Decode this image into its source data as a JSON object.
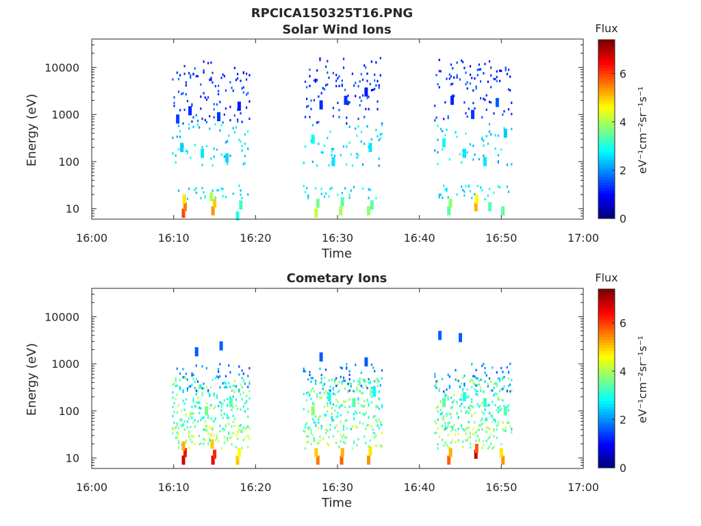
{
  "figure_title": "RPCICA150325T16.PNG",
  "chart_data": [
    {
      "type": "heatmap",
      "title": "Solar Wind Ions",
      "xlabel": "Time",
      "ylabel": "Energy (eV)",
      "x_ticks": [
        "16:00",
        "16:10",
        "16:20",
        "16:30",
        "16:40",
        "16:50",
        "17:00"
      ],
      "y_ticks": [
        "10",
        "100",
        "1000",
        "10000"
      ],
      "y_scale": "log",
      "ylim": [
        6,
        40000
      ],
      "xlim_minutes": [
        0,
        60
      ],
      "colorbar": {
        "label_top": "Flux",
        "label_side": "eV⁻¹cm⁻²sr⁻¹s⁻¹",
        "ticks": [
          "0",
          "2",
          "4",
          "6"
        ],
        "range": [
          0,
          7.4
        ],
        "colormap": "jet"
      },
      "bursts": [
        {
          "start_min": 9.8,
          "end_min": 19.3,
          "note": "data interval"
        },
        {
          "start_min": 25.8,
          "end_min": 35.5,
          "note": "data interval"
        },
        {
          "start_min": 41.8,
          "end_min": 51.3,
          "note": "data interval"
        }
      ],
      "cells": [
        [
          11.2,
          8,
          6.0
        ],
        [
          11.4,
          11,
          5.6
        ],
        [
          11.3,
          16,
          4.8
        ],
        [
          14.8,
          9,
          5.4
        ],
        [
          15.0,
          13,
          5.0
        ],
        [
          14.6,
          18,
          4.0
        ],
        [
          17.8,
          7,
          3.0
        ],
        [
          18.2,
          12,
          3.2
        ],
        [
          27.4,
          8,
          4.2
        ],
        [
          27.6,
          13,
          3.6
        ],
        [
          30.4,
          9,
          4.0
        ],
        [
          30.6,
          14,
          3.4
        ],
        [
          33.8,
          9,
          3.8
        ],
        [
          34.2,
          12,
          3.4
        ],
        [
          43.6,
          9,
          3.4
        ],
        [
          43.8,
          13,
          3.8
        ],
        [
          46.9,
          11,
          5.2
        ],
        [
          47.0,
          16,
          4.6
        ],
        [
          50.2,
          9,
          3.4
        ],
        [
          48.6,
          11,
          3.4
        ],
        [
          10.5,
          800,
          1.4
        ],
        [
          12.0,
          1200,
          1.2
        ],
        [
          15.5,
          900,
          1.3
        ],
        [
          18.0,
          1500,
          1.1
        ],
        [
          28.0,
          1600,
          1.2
        ],
        [
          31.0,
          2000,
          1.3
        ],
        [
          33.5,
          3000,
          1.1
        ],
        [
          44.0,
          2000,
          1.2
        ],
        [
          46.5,
          1000,
          1.3
        ],
        [
          49.5,
          1800,
          1.6
        ],
        [
          11.0,
          200,
          2.4
        ],
        [
          13.5,
          150,
          2.6
        ],
        [
          16.5,
          120,
          2.5
        ],
        [
          27.0,
          300,
          2.8
        ],
        [
          29.5,
          100,
          2.6
        ],
        [
          34.0,
          200,
          2.6
        ],
        [
          43.0,
          250,
          2.8
        ],
        [
          45.5,
          150,
          2.6
        ],
        [
          48.0,
          100,
          2.6
        ],
        [
          50.5,
          400,
          2.4
        ]
      ]
    },
    {
      "type": "heatmap",
      "title": "Cometary Ions",
      "xlabel": "Time",
      "ylabel": "Energy (eV)",
      "x_ticks": [
        "16:00",
        "16:10",
        "16:20",
        "16:30",
        "16:40",
        "16:50",
        "17:00"
      ],
      "y_ticks": [
        "10",
        "100",
        "1000",
        "10000"
      ],
      "y_scale": "log",
      "ylim": [
        6,
        40000
      ],
      "xlim_minutes": [
        0,
        60
      ],
      "colorbar": {
        "label_top": "Flux",
        "label_side": "eV⁻¹cm⁻²sr⁻¹s⁻¹",
        "ticks": [
          "0",
          "2",
          "4",
          "6"
        ],
        "range": [
          0,
          7.4
        ],
        "colormap": "jet"
      },
      "bursts": [
        {
          "start_min": 9.8,
          "end_min": 19.3,
          "note": "data interval"
        },
        {
          "start_min": 25.8,
          "end_min": 35.5,
          "note": "data interval"
        },
        {
          "start_min": 41.8,
          "end_min": 51.3,
          "note": "data interval"
        }
      ],
      "cells": [
        [
          11.2,
          9,
          6.8
        ],
        [
          11.4,
          13,
          6.4
        ],
        [
          11.2,
          18,
          5.2
        ],
        [
          14.8,
          9,
          6.6
        ],
        [
          15.0,
          12,
          6.2
        ],
        [
          14.7,
          20,
          5.0
        ],
        [
          17.8,
          9,
          5.0
        ],
        [
          18.0,
          13,
          4.6
        ],
        [
          27.6,
          9,
          5.6
        ],
        [
          27.4,
          13,
          5.0
        ],
        [
          30.5,
          9,
          5.8
        ],
        [
          30.6,
          13,
          5.2
        ],
        [
          33.8,
          9,
          5.4
        ],
        [
          34.0,
          14,
          4.8
        ],
        [
          43.6,
          9,
          5.8
        ],
        [
          43.8,
          13,
          5.2
        ],
        [
          46.9,
          12,
          6.9
        ],
        [
          47.0,
          16,
          5.8
        ],
        [
          50.2,
          9,
          5.4
        ],
        [
          50.0,
          13,
          4.8
        ],
        [
          12.8,
          1800,
          1.6
        ],
        [
          15.8,
          2400,
          1.6
        ],
        [
          42.5,
          4000,
          1.6
        ],
        [
          45.0,
          3600,
          1.6
        ],
        [
          28.0,
          1400,
          1.6
        ],
        [
          33.5,
          1100,
          1.6
        ],
        [
          14.0,
          100,
          3.6
        ],
        [
          17.0,
          150,
          3.4
        ],
        [
          27.0,
          100,
          3.8
        ],
        [
          29.0,
          200,
          3.0
        ],
        [
          32.0,
          150,
          3.4
        ],
        [
          34.5,
          250,
          2.8
        ],
        [
          43.0,
          150,
          3.4
        ],
        [
          45.5,
          200,
          3.0
        ],
        [
          48.0,
          150,
          3.2
        ],
        [
          50.5,
          100,
          3.4
        ]
      ]
    }
  ]
}
